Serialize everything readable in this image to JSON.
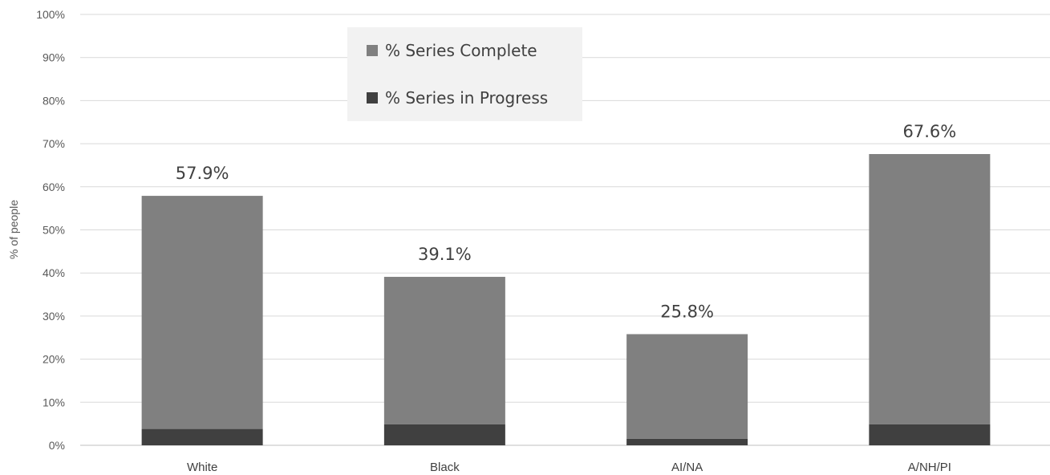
{
  "chart_data": {
    "type": "bar",
    "stacked": true,
    "title": "",
    "xlabel": "",
    "ylabel": "% of people",
    "ylim": [
      0,
      100
    ],
    "y_ticks": [
      "0%",
      "10%",
      "20%",
      "30%",
      "40%",
      "50%",
      "60%",
      "70%",
      "80%",
      "90%",
      "100%"
    ],
    "categories": [
      "White",
      "Black",
      "AI/NA",
      "A/NH/PI"
    ],
    "series": [
      {
        "name": "% Series in Progress",
        "values": [
          3.8,
          4.9,
          1.5,
          4.9
        ],
        "color": "#404040"
      },
      {
        "name": "% Series Complete",
        "values": [
          54.1,
          34.2,
          24.3,
          62.7
        ],
        "color": "#808080"
      }
    ],
    "data_labels": [
      "57.9%",
      "39.1%",
      "25.8%",
      "67.6%"
    ],
    "totals": [
      57.9,
      39.1,
      25.8,
      67.6
    ],
    "legend": {
      "position": "top-center",
      "background": "#f2f2f2",
      "entries": [
        "% Series Complete",
        "% Series in Progress"
      ]
    },
    "grid": true,
    "colors": {
      "gridline": "#d9d9d9",
      "axis": "#bfbfbf"
    }
  }
}
